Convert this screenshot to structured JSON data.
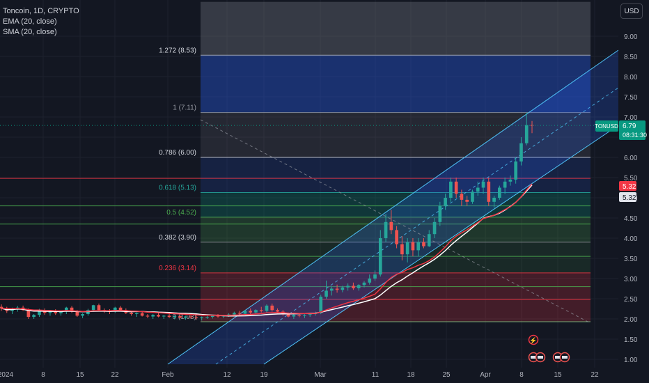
{
  "legend": {
    "symbol": "Toncoin, 1D, CRYPTO",
    "ema": "EMA (20, close)",
    "sma": "SMA (20, close)"
  },
  "currency_button": "USD",
  "price_axis": {
    "ticks": [
      "9.00",
      "8.50",
      "8.00",
      "7.50",
      "7.00",
      "6.50",
      "6.00",
      "5.50",
      "5.00",
      "4.50",
      "4.00",
      "3.50",
      "3.00",
      "2.50",
      "2.00",
      "1.50",
      "1.00"
    ]
  },
  "time_axis": {
    "labels": [
      "2024",
      "8",
      "15",
      "22",
      "Feb",
      "12",
      "19",
      "Mar",
      "11",
      "18",
      "25",
      "Apr",
      "8",
      "15",
      "22"
    ]
  },
  "price_tag": {
    "symbol": "TONUSD",
    "price": "6.79",
    "countdown": "08:31:30",
    "ema_value": "5.32",
    "sma_value": "5.32"
  },
  "fib_labels": [
    {
      "text": "1.272 (8.53)",
      "price": 8.53,
      "color": "#d1d4dc"
    },
    {
      "text": "1 (7.11)",
      "price": 7.11,
      "color": "#9598a1"
    },
    {
      "text": "0.786 (6.00)",
      "price": 6.0,
      "color": "#d1d4dc"
    },
    {
      "text": "0.618 (5.13)",
      "price": 5.13,
      "color": "#26a69a"
    },
    {
      "text": "0.5 (4.52)",
      "price": 4.52,
      "color": "#4caf50"
    },
    {
      "text": "0.382 (3.90)",
      "price": 3.9,
      "color": "#d1d4dc"
    },
    {
      "text": "0.236 (3.14)",
      "price": 3.14,
      "color": "#f23645"
    },
    {
      "text": "0 (1.93)",
      "price": 1.93,
      "color": "#9598a1"
    }
  ],
  "colors": {
    "up": "#26a69a",
    "down": "#ef5350",
    "ema": "#f23645",
    "sma": "#ffffff",
    "price_line": "#089981",
    "ema_tag": "#f23645",
    "sma_tag": "#e0e3eb"
  },
  "chart_data": {
    "type": "candlestick",
    "symbol": "TONUSD",
    "timeframe": "1D",
    "ylim": [
      1.0,
      9.25
    ],
    "last_price": 6.79,
    "candles_ohlc": [
      [
        2.3,
        2.36,
        2.2,
        2.26
      ],
      [
        2.26,
        2.3,
        2.15,
        2.2
      ],
      [
        2.2,
        2.28,
        2.12,
        2.24
      ],
      [
        2.24,
        2.32,
        2.18,
        2.28
      ],
      [
        2.28,
        2.33,
        2.2,
        2.22
      ],
      [
        2.22,
        2.26,
        2.0,
        2.05
      ],
      [
        2.05,
        2.12,
        2.0,
        2.1
      ],
      [
        2.1,
        2.25,
        2.05,
        2.2
      ],
      [
        2.2,
        2.26,
        2.1,
        2.15
      ],
      [
        2.15,
        2.22,
        2.08,
        2.18
      ],
      [
        2.18,
        2.24,
        2.1,
        2.14
      ],
      [
        2.14,
        2.2,
        2.08,
        2.18
      ],
      [
        2.18,
        2.3,
        2.12,
        2.28
      ],
      [
        2.28,
        2.32,
        2.15,
        2.18
      ],
      [
        2.18,
        2.22,
        2.05,
        2.08
      ],
      [
        2.08,
        2.14,
        2.02,
        2.12
      ],
      [
        2.12,
        2.25,
        2.08,
        2.22
      ],
      [
        2.22,
        2.35,
        2.18,
        2.34
      ],
      [
        2.34,
        2.38,
        2.2,
        2.22
      ],
      [
        2.22,
        2.26,
        2.15,
        2.2
      ],
      [
        2.2,
        2.24,
        2.12,
        2.18
      ],
      [
        2.18,
        2.3,
        2.15,
        2.28
      ],
      [
        2.28,
        2.32,
        2.18,
        2.22
      ],
      [
        2.22,
        2.26,
        2.12,
        2.15
      ],
      [
        2.15,
        2.2,
        2.08,
        2.12
      ],
      [
        2.12,
        2.16,
        2.05,
        2.14
      ],
      [
        2.14,
        2.18,
        2.06,
        2.08
      ],
      [
        2.08,
        2.12,
        2.02,
        2.06
      ],
      [
        2.06,
        2.12,
        2.0,
        2.1
      ],
      [
        2.1,
        2.14,
        2.04,
        2.06
      ],
      [
        2.06,
        2.1,
        2.0,
        2.08
      ],
      [
        2.08,
        2.12,
        2.02,
        2.05
      ],
      [
        2.05,
        2.09,
        1.99,
        2.07
      ],
      [
        2.07,
        2.1,
        2.01,
        2.03
      ],
      [
        2.03,
        2.08,
        1.98,
        2.06
      ],
      [
        2.06,
        2.1,
        2.0,
        2.04
      ],
      [
        2.04,
        2.08,
        1.98,
        2.02
      ],
      [
        2.02,
        2.06,
        1.96,
        2.04
      ],
      [
        2.04,
        2.08,
        2.0,
        2.05
      ],
      [
        2.05,
        2.1,
        2.01,
        2.08
      ],
      [
        2.08,
        2.12,
        2.03,
        2.06
      ],
      [
        2.06,
        2.1,
        2.02,
        2.09
      ],
      [
        2.09,
        2.14,
        2.05,
        2.11
      ],
      [
        2.11,
        2.18,
        2.08,
        2.15
      ],
      [
        2.15,
        2.2,
        2.1,
        2.13
      ],
      [
        2.13,
        2.22,
        2.1,
        2.2
      ],
      [
        2.2,
        2.26,
        2.12,
        2.16
      ],
      [
        2.16,
        2.24,
        2.12,
        2.22
      ],
      [
        2.22,
        2.3,
        2.16,
        2.2
      ],
      [
        2.2,
        2.36,
        2.16,
        2.33
      ],
      [
        2.33,
        2.38,
        2.18,
        2.22
      ],
      [
        2.22,
        2.26,
        2.14,
        2.18
      ],
      [
        2.18,
        2.22,
        2.08,
        2.12
      ],
      [
        2.12,
        2.16,
        2.04,
        2.06
      ],
      [
        2.06,
        2.12,
        2.0,
        2.1
      ],
      [
        2.1,
        2.14,
        2.04,
        2.08
      ],
      [
        2.08,
        2.12,
        2.02,
        2.1
      ],
      [
        2.1,
        2.14,
        2.05,
        2.12
      ],
      [
        2.12,
        2.18,
        2.08,
        2.15
      ],
      [
        2.15,
        2.6,
        2.12,
        2.55
      ],
      [
        2.55,
        2.95,
        2.5,
        2.7
      ],
      [
        2.7,
        2.8,
        2.58,
        2.75
      ],
      [
        2.75,
        2.85,
        2.65,
        2.72
      ],
      [
        2.72,
        2.82,
        2.66,
        2.78
      ],
      [
        2.78,
        2.88,
        2.7,
        2.82
      ],
      [
        2.82,
        2.9,
        2.72,
        2.76
      ],
      [
        2.76,
        2.86,
        2.7,
        2.84
      ],
      [
        2.84,
        2.94,
        2.78,
        2.9
      ],
      [
        2.9,
        3.1,
        2.85,
        3.0
      ],
      [
        3.0,
        3.2,
        2.95,
        3.1
      ],
      [
        3.1,
        4.2,
        3.05,
        4.0
      ],
      [
        4.0,
        4.6,
        3.9,
        4.4
      ],
      [
        4.4,
        4.7,
        4.1,
        4.2
      ],
      [
        4.2,
        4.3,
        3.75,
        3.85
      ],
      [
        3.85,
        4.05,
        3.45,
        3.6
      ],
      [
        3.6,
        4.0,
        3.4,
        3.9
      ],
      [
        3.9,
        4.0,
        3.55,
        3.7
      ],
      [
        3.7,
        4.0,
        3.55,
        3.9
      ],
      [
        3.9,
        4.0,
        3.75,
        3.8
      ],
      [
        3.8,
        4.2,
        3.78,
        4.1
      ],
      [
        4.1,
        4.5,
        4.0,
        4.4
      ],
      [
        4.4,
        4.9,
        4.3,
        4.8
      ],
      [
        4.8,
        5.1,
        4.7,
        5.0
      ],
      [
        5.0,
        5.5,
        4.9,
        5.4
      ],
      [
        5.4,
        5.5,
        5.0,
        5.1
      ],
      [
        5.1,
        5.2,
        4.8,
        4.95
      ],
      [
        4.95,
        5.05,
        4.8,
        4.9
      ],
      [
        4.9,
        5.2,
        4.85,
        5.15
      ],
      [
        5.15,
        5.4,
        5.05,
        5.25
      ],
      [
        5.25,
        5.5,
        5.1,
        5.4
      ],
      [
        5.4,
        5.5,
        4.8,
        4.9
      ],
      [
        4.9,
        5.05,
        4.75,
        5.0
      ],
      [
        5.0,
        5.3,
        4.95,
        5.25
      ],
      [
        5.25,
        5.5,
        5.1,
        5.4
      ],
      [
        5.4,
        5.55,
        5.3,
        5.45
      ],
      [
        5.45,
        6.0,
        5.35,
        5.9
      ],
      [
        5.9,
        6.5,
        5.8,
        6.35
      ],
      [
        6.35,
        7.11,
        6.3,
        6.8
      ],
      [
        6.8,
        6.9,
        6.6,
        6.79
      ]
    ],
    "fib_retracement": [
      {
        "level": 1.272,
        "price": 8.53
      },
      {
        "level": 1,
        "price": 7.11
      },
      {
        "level": 0.786,
        "price": 6.0
      },
      {
        "level": 0.618,
        "price": 5.13
      },
      {
        "level": 0.5,
        "price": 4.52
      },
      {
        "level": 0.382,
        "price": 3.9
      },
      {
        "level": 0.236,
        "price": 3.14
      },
      {
        "level": 0,
        "price": 1.93
      }
    ],
    "series": [
      {
        "name": "EMA (20, close)"
      },
      {
        "name": "SMA (20, close)"
      }
    ]
  }
}
